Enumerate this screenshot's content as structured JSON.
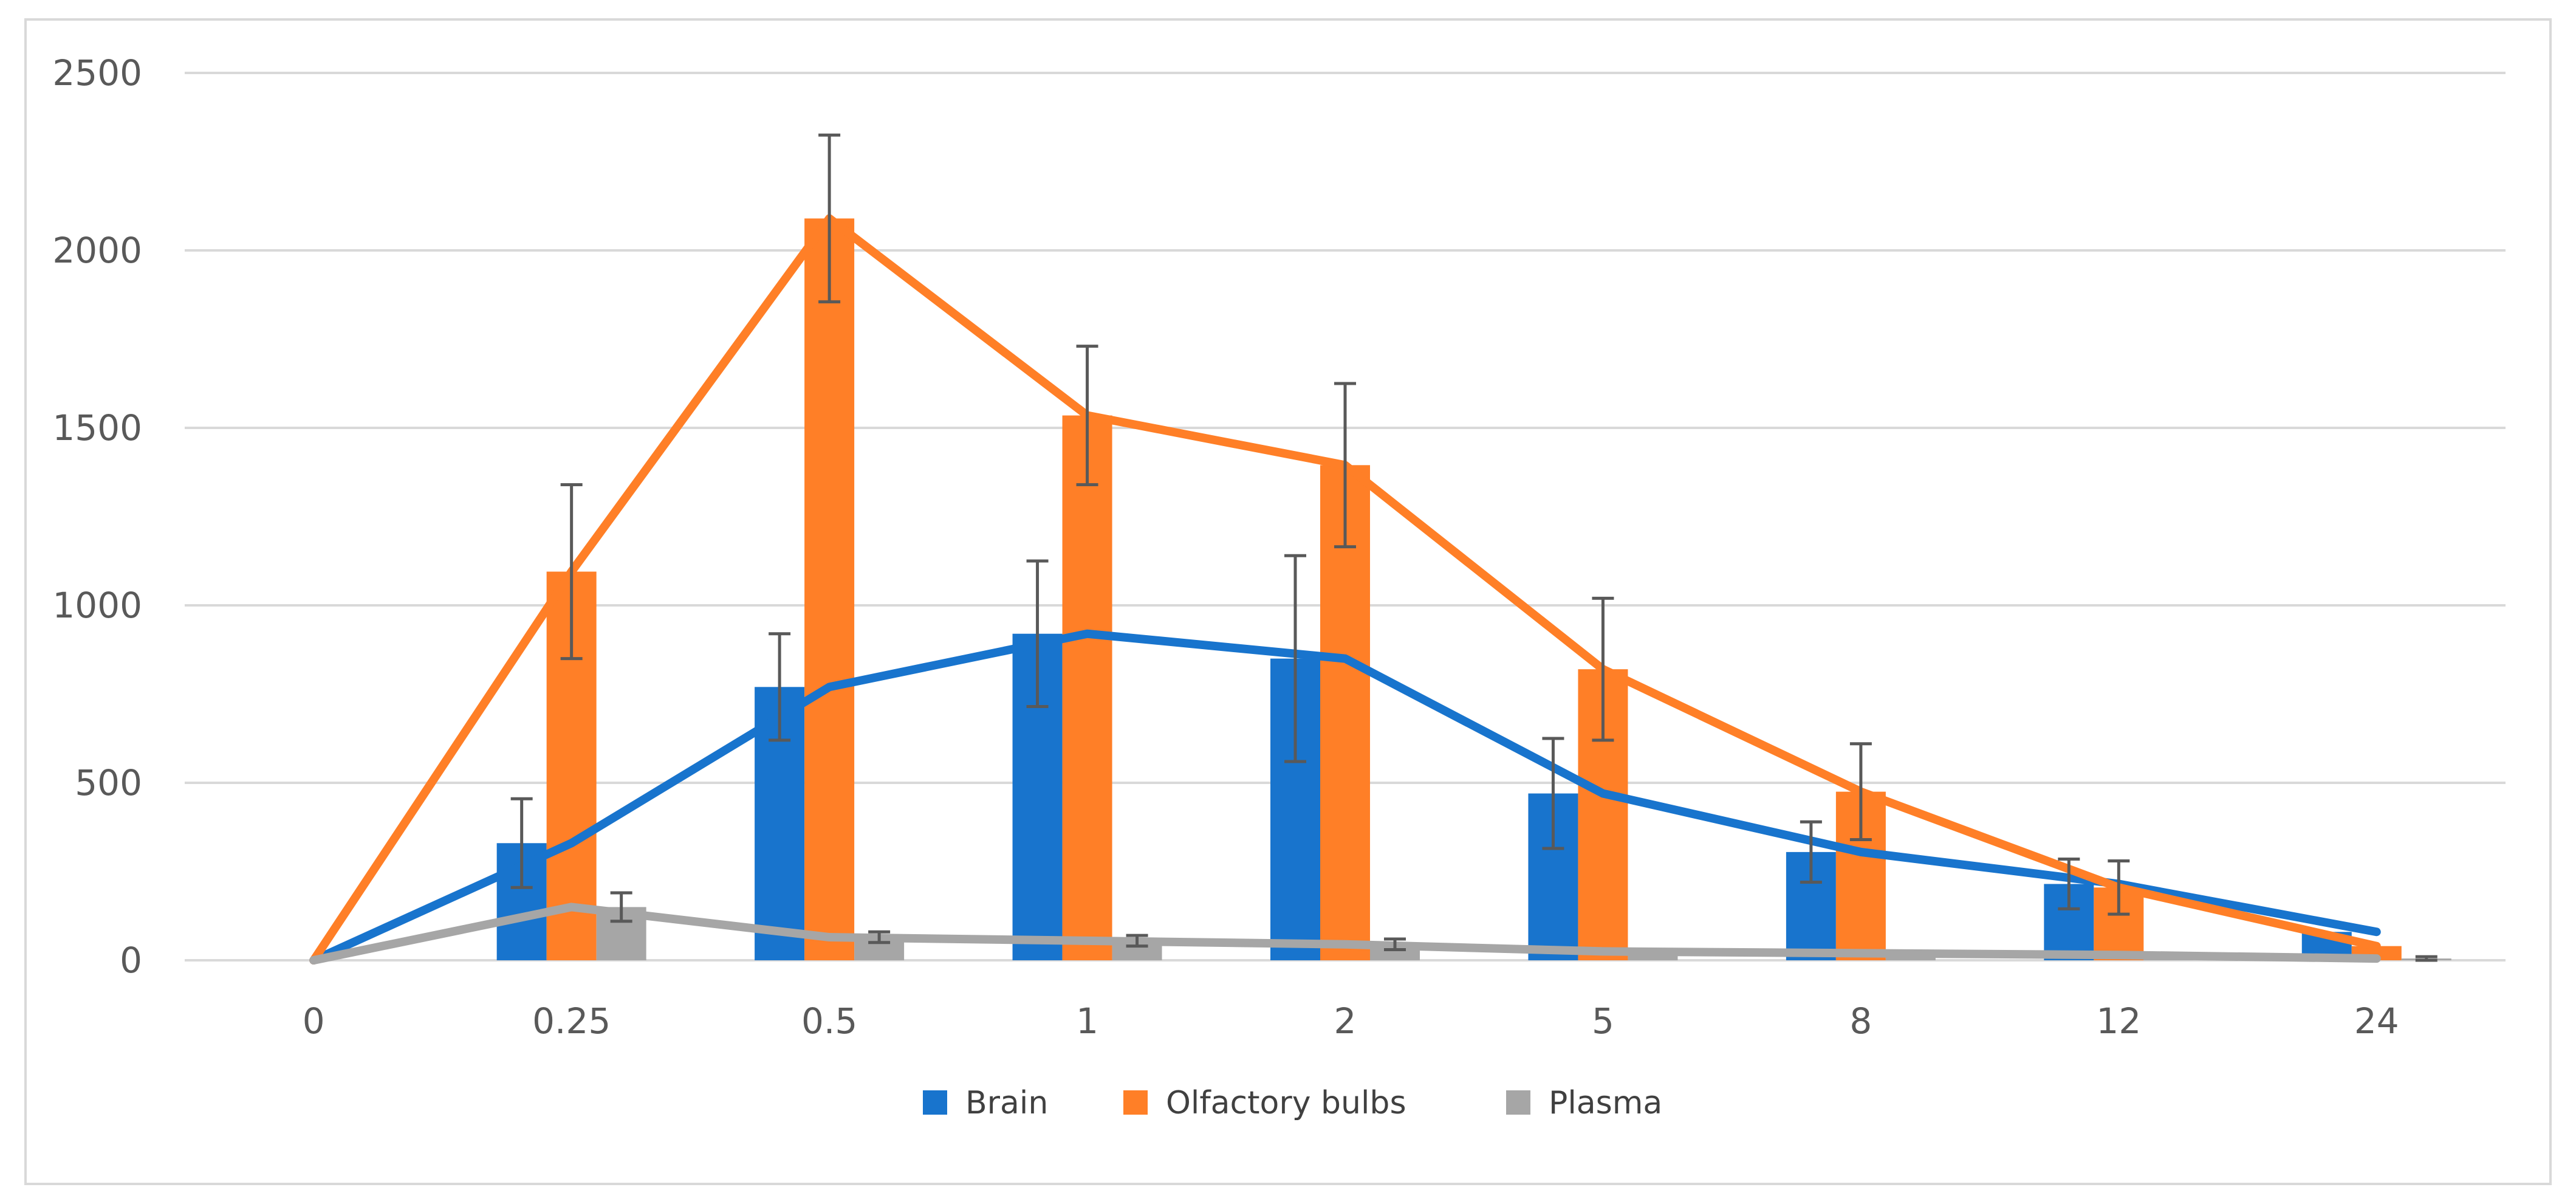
{
  "chart_data": {
    "type": "bar",
    "title": "",
    "xlabel": "",
    "ylabel": "",
    "ylim": [
      0,
      2500
    ],
    "yticks": [
      0,
      500,
      1000,
      1500,
      2000,
      2500
    ],
    "grid": true,
    "legend_position": "bottom",
    "categories": [
      "0",
      "0.25",
      "0.5",
      "1",
      "2",
      "5",
      "8",
      "12",
      "24"
    ],
    "series": [
      {
        "name": "Brain",
        "color": "#1874CD",
        "values": [
          0,
          330,
          770,
          920,
          850,
          470,
          305,
          215,
          80
        ],
        "errors": [
          0,
          125,
          150,
          205,
          290,
          155,
          85,
          70,
          0
        ],
        "trend_line": true
      },
      {
        "name": "Olfactory bulbs",
        "color": "#FF7F27",
        "values": [
          0,
          1095,
          2090,
          1535,
          1395,
          820,
          475,
          205,
          40
        ],
        "errors": [
          0,
          245,
          235,
          195,
          230,
          200,
          135,
          75,
          0
        ],
        "trend_line": true
      },
      {
        "name": "Plasma",
        "color": "#A6A6A6",
        "values": [
          0,
          150,
          65,
          55,
          45,
          25,
          20,
          15,
          5
        ],
        "errors": [
          0,
          40,
          15,
          15,
          15,
          0,
          0,
          0,
          5
        ],
        "trend_line": true
      }
    ]
  }
}
